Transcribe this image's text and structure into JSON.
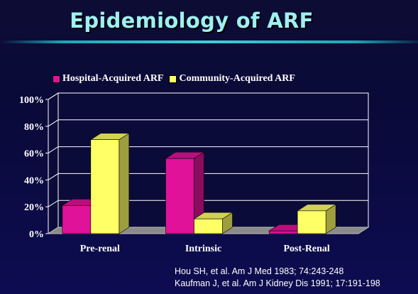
{
  "slide": {
    "title": "Epidemiology of ARF",
    "citations": [
      "Hou SH, et al. Am J Med 1983; 74:243-248",
      "Kaufman J, et al. Am J Kidney Dis 1991; 17:191-198"
    ]
  },
  "chart_data": {
    "type": "bar",
    "categories": [
      "Pre-renal",
      "Intrinsic",
      "Post-Renal"
    ],
    "series": [
      {
        "name": "Hospital-Acquired ARF",
        "values": [
          21,
          56,
          2
        ],
        "color": "#e0129a"
      },
      {
        "name": "Community-Acquired ARF",
        "values": [
          70,
          11,
          17
        ],
        "color": "#ffff66"
      }
    ],
    "ylim": [
      0,
      100
    ],
    "yticks": [
      "0%",
      "20%",
      "40%",
      "60%",
      "80%",
      "100%"
    ],
    "grid": true,
    "legend_position": "top-left",
    "three_d": true
  }
}
